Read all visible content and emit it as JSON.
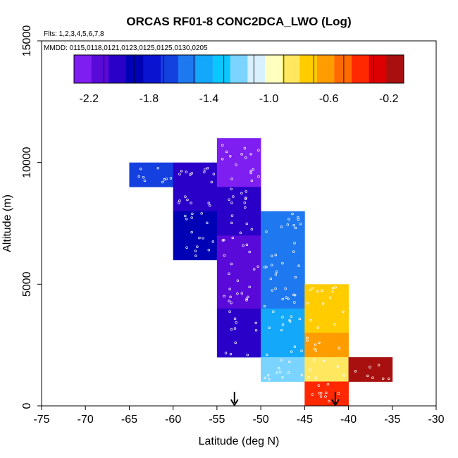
{
  "chart_data": {
    "type": "heatmap",
    "title": "ORCAS RF01-8 CONC2DCA_LWO (Log)",
    "notes": {
      "flights": "Flts: 1,2,3,4,5,6,7,8",
      "dates": "MMDD: 0115,0118,0121,0123,0125,0125,0130,0205"
    },
    "xlabel": "Latitude (deg N)",
    "ylabel": "Altitude (m)",
    "xlim": [
      -75,
      -30
    ],
    "ylim": [
      0,
      15000
    ],
    "x_ticks": [
      -75,
      -70,
      -65,
      -60,
      -55,
      -50,
      -45,
      -40,
      -35,
      -30
    ],
    "x_tick_labels": [
      "-75",
      "-70",
      "-65",
      "-60",
      "-55",
      "-50",
      "-45",
      "-40",
      "-35",
      "-30"
    ],
    "y_ticks": [
      0,
      5000,
      10000,
      15000
    ],
    "y_tick_labels": [
      "0",
      "5000",
      "10000",
      "15000"
    ],
    "colorbar": {
      "range": [
        -2.3,
        -0.1
      ],
      "ticks": [
        -2.2,
        -1.8,
        -1.4,
        -1.0,
        -0.6,
        -0.2
      ],
      "tick_labels": [
        "-2.2",
        "-1.8",
        "-1.4",
        "-1.0",
        "-0.6",
        "-0.2"
      ],
      "colors": [
        "#7e1ef0",
        "#5a0ad8",
        "#2a00c8",
        "#0000b4",
        "#0a14d0",
        "#1440e0",
        "#1e78f0",
        "#14a8fa",
        "#0ac8ff",
        "#7ad4ff",
        "#d8f0ff",
        "#ffffc0",
        "#ffe860",
        "#ffcc00",
        "#ff9c00",
        "#ff6a00",
        "#ff2800",
        "#dc0000",
        "#a81010"
      ]
    },
    "bin_width": 5,
    "bin_height": 1000,
    "cells": [
      {
        "x": -65,
        "y": 9000,
        "value": -1.65
      },
      {
        "x": -60,
        "y": 9000,
        "value": -2.05
      },
      {
        "x": -60,
        "y": 8000,
        "value": -2.05
      },
      {
        "x": -60,
        "y": 7000,
        "value": -1.95
      },
      {
        "x": -60,
        "y": 6000,
        "value": -1.85
      },
      {
        "x": -55,
        "y": 10000,
        "value": -2.25
      },
      {
        "x": -55,
        "y": 9000,
        "value": -2.2
      },
      {
        "x": -55,
        "y": 8000,
        "value": -2.05
      },
      {
        "x": -55,
        "y": 7000,
        "value": -2.05
      },
      {
        "x": -55,
        "y": 6000,
        "value": -2.1
      },
      {
        "x": -55,
        "y": 5000,
        "value": -2.1
      },
      {
        "x": -55,
        "y": 4000,
        "value": -2.1
      },
      {
        "x": -55,
        "y": 3000,
        "value": -2.05
      },
      {
        "x": -55,
        "y": 2000,
        "value": -2.0
      },
      {
        "x": -50,
        "y": 7000,
        "value": -1.55
      },
      {
        "x": -50,
        "y": 6000,
        "value": -1.55
      },
      {
        "x": -50,
        "y": 5000,
        "value": -1.55
      },
      {
        "x": -50,
        "y": 4000,
        "value": -1.5
      },
      {
        "x": -50,
        "y": 3000,
        "value": -1.48
      },
      {
        "x": -50,
        "y": 2000,
        "value": -1.4
      },
      {
        "x": -50,
        "y": 1000,
        "value": -1.25
      },
      {
        "x": -45,
        "y": 4000,
        "value": -0.75
      },
      {
        "x": -45,
        "y": 3000,
        "value": -0.7
      },
      {
        "x": -45,
        "y": 2000,
        "value": -0.65
      },
      {
        "x": -45,
        "y": 1000,
        "value": -0.8
      },
      {
        "x": -45,
        "y": 0,
        "value": -0.4
      },
      {
        "x": -40,
        "y": 1000,
        "value": -0.15
      }
    ],
    "markers": [
      {
        "type": "arrow-down",
        "x": -53,
        "y": 500
      },
      {
        "type": "arrow-down",
        "x": -41.5,
        "y": 500
      }
    ]
  }
}
